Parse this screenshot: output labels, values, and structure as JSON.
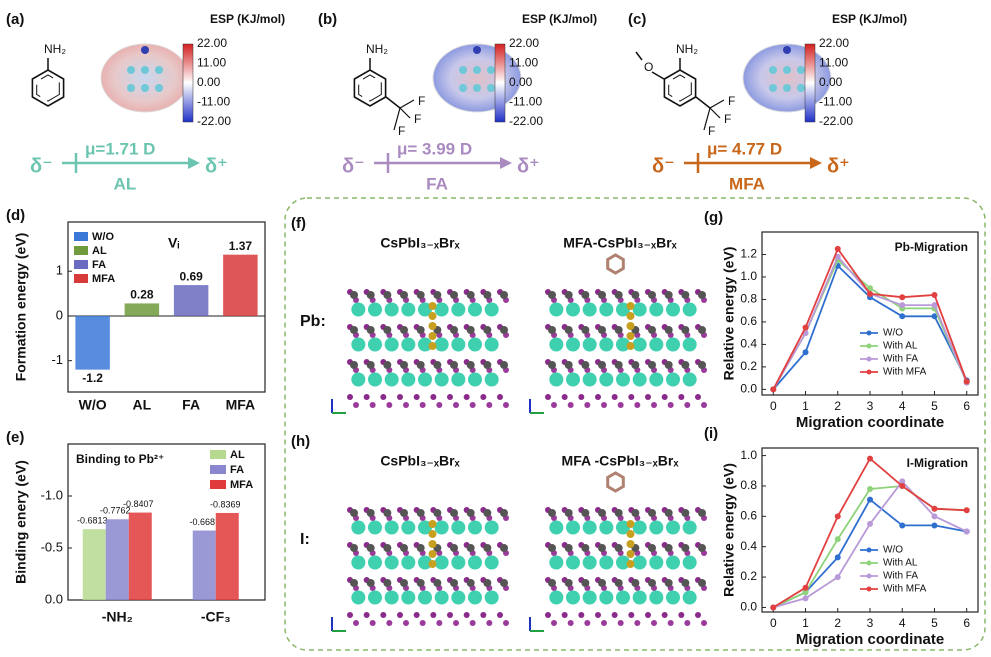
{
  "molecules": [
    {
      "label": "(a)",
      "esp_title": "ESP (KJ/mol)",
      "colorbar_ticks": [
        "22.00",
        "11.00",
        "0.00",
        "-11.00",
        "-22.00"
      ],
      "atoms": [
        "NH₂"
      ],
      "dipole": {
        "minus": "δ⁻",
        "moment": "μ=1.71 D",
        "name": "AL",
        "plus": "δ⁺",
        "color": "#6cc5b0"
      }
    },
    {
      "label": "(b)",
      "esp_title": "ESP (KJ/mol)",
      "colorbar_ticks": [
        "22.00",
        "11.00",
        "0.00",
        "-11.00",
        "-22.00"
      ],
      "atoms": [
        "NH₂",
        "F",
        "F",
        "F"
      ],
      "dipole": {
        "minus": "δ⁻",
        "moment": "μ= 3.99 D",
        "name": "FA",
        "plus": "δ⁺",
        "color": "#a98bc0"
      }
    },
    {
      "label": "(c)",
      "esp_title": "ESP (KJ/mol)",
      "colorbar_ticks": [
        "22.00",
        "11.00",
        "0.00",
        "-11.00",
        "-22.00"
      ],
      "atoms": [
        "NH₂",
        "O",
        "F",
        "F",
        "F"
      ],
      "dipole": {
        "minus": "δ⁻",
        "moment": "μ= 4.77 D",
        "name": "MFA",
        "plus": "δ⁺",
        "color": "#c8661a"
      }
    }
  ],
  "structures": [
    {
      "label": "(f)",
      "row_label": "Pb:",
      "names": [
        "CsPbI₃₋ₓBrₓ",
        "MFA-CsPbI₃₋ₓBrₓ"
      ]
    },
    {
      "label": "(h)",
      "row_label": "I:",
      "names": [
        "CsPbI₃₋ₓBrₓ",
        "MFA -CsPbI₃₋ₓBrₓ"
      ]
    }
  ],
  "chart_data": [
    {
      "type": "bar",
      "label": "(d)",
      "annotation": "Vᵢ",
      "ylabel": "Formation energy (eV)",
      "categories": [
        "W/O",
        "AL",
        "FA",
        "MFA"
      ],
      "values": [
        -1.2,
        0.28,
        0.69,
        1.37
      ],
      "colors": [
        "#3a78d8",
        "#6f9b3c",
        "#6a6ac0",
        "#d83a3a"
      ],
      "ylim": [
        -1.7,
        2.1
      ],
      "yticks": [
        -1,
        0,
        1
      ]
    },
    {
      "type": "grouped_bar",
      "label": "(e)",
      "annotation": "Binding to Pb²⁺",
      "ylabel": "Binding enery (eV)",
      "categories": [
        "-NH₂",
        "-CF₃"
      ],
      "series": [
        {
          "name": "AL",
          "color": "#b5d98f",
          "values": [
            -0.6813,
            null
          ]
        },
        {
          "name": "FA",
          "color": "#8a86cf",
          "values": [
            -0.7762,
            -0.668
          ]
        },
        {
          "name": "MFA",
          "color": "#e03a3a",
          "values": [
            -0.8407,
            -0.8369
          ]
        }
      ],
      "ylim": [
        0,
        -1.5
      ],
      "yticks": [
        {
          "value": 0,
          "label": "0.0"
        },
        {
          "value": -0.5,
          "label": "-0.5"
        },
        {
          "value": -1,
          "label": "-1.0"
        }
      ]
    },
    {
      "type": "line",
      "label": "(g)",
      "title": "Pb-Migration",
      "xlabel": "Migration coordinate",
      "ylabel": "Relative energy (eV)",
      "x": [
        0,
        1,
        2,
        3,
        4,
        5,
        6
      ],
      "series": [
        {
          "name": "W/O",
          "color": "#2f6fd0",
          "values": [
            0,
            0.33,
            1.1,
            0.82,
            0.65,
            0.65,
            0.08
          ]
        },
        {
          "name": "With AL",
          "color": "#8ed37a",
          "values": [
            0,
            0.5,
            1.15,
            0.9,
            0.72,
            0.72,
            0.06
          ]
        },
        {
          "name": "With FA",
          "color": "#b99ad8",
          "values": [
            0,
            0.5,
            1.18,
            0.85,
            0.75,
            0.75,
            0.06
          ]
        },
        {
          "name": "With MFA",
          "color": "#e24040",
          "values": [
            0,
            0.55,
            1.25,
            0.85,
            0.82,
            0.84,
            0.07
          ]
        }
      ],
      "xlim": [
        -0.35,
        6.35
      ],
      "xticks": [
        0,
        1,
        2,
        3,
        4,
        5,
        6
      ],
      "ylim": [
        -0.05,
        1.4
      ],
      "yticks": [
        {
          "value": 0,
          "label": "0.0"
        },
        {
          "value": 0.2,
          "label": "0.2"
        },
        {
          "value": 0.4,
          "label": "0.4"
        },
        {
          "value": 0.6,
          "label": "0.6"
        },
        {
          "value": 0.8,
          "label": "0.8"
        },
        {
          "value": 1,
          "label": "1.0"
        },
        {
          "value": 1.2,
          "label": "1.2"
        }
      ]
    },
    {
      "type": "line",
      "label": "(i)",
      "title": "I-Migration",
      "xlabel": "Migration coordinate",
      "ylabel": "Relative energy (eV)",
      "x": [
        0,
        1,
        2,
        3,
        4,
        5,
        6
      ],
      "series": [
        {
          "name": "W/O",
          "color": "#2f6fd0",
          "values": [
            0,
            0.1,
            0.33,
            0.71,
            0.54,
            0.54,
            0.5
          ]
        },
        {
          "name": "With AL",
          "color": "#8ed37a",
          "values": [
            0,
            0.1,
            0.45,
            0.78,
            0.8,
            0.65,
            0.64
          ]
        },
        {
          "name": "With FA",
          "color": "#b99ad8",
          "values": [
            0,
            0.06,
            0.2,
            0.55,
            0.83,
            0.6,
            0.5
          ]
        },
        {
          "name": "With MFA",
          "color": "#e24040",
          "values": [
            0,
            0.13,
            0.6,
            0.98,
            0.8,
            0.65,
            0.64
          ]
        }
      ],
      "xlim": [
        -0.35,
        6.35
      ],
      "xticks": [
        0,
        1,
        2,
        3,
        4,
        5,
        6
      ],
      "ylim": [
        -0.03,
        1.05
      ],
      "yticks": [
        {
          "value": 0,
          "label": "0.0"
        },
        {
          "value": 0.2,
          "label": "0.2"
        },
        {
          "value": 0.4,
          "label": "0.4"
        },
        {
          "value": 0.6,
          "label": "0.6"
        },
        {
          "value": 0.8,
          "label": "0.8"
        },
        {
          "value": 1,
          "label": "1.0"
        }
      ]
    }
  ]
}
